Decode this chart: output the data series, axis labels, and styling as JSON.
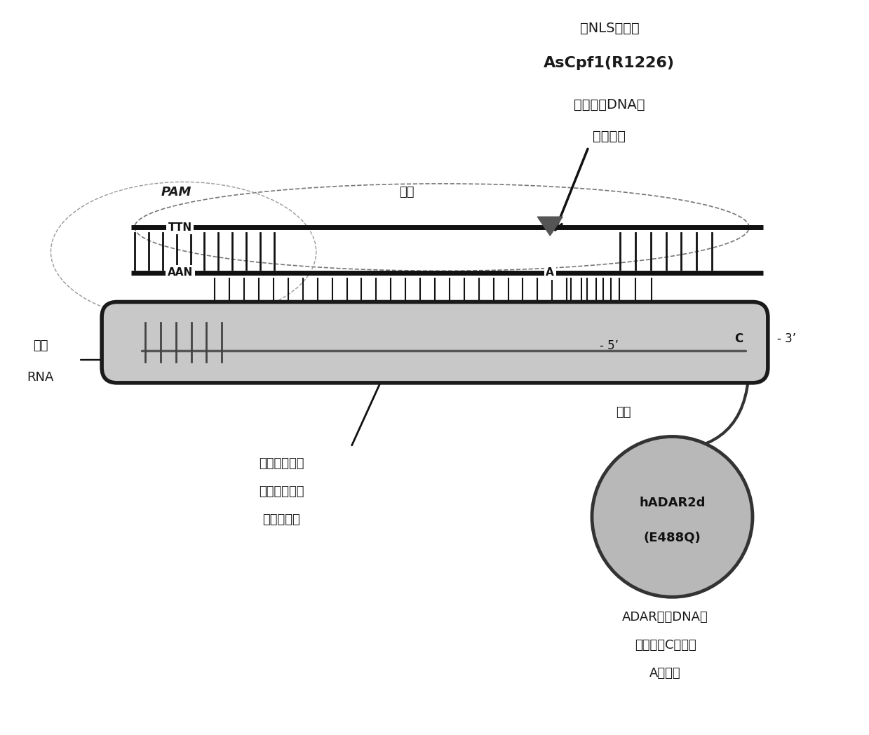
{
  "bg_color": "#ffffff",
  "line_color": "#1a1a1a",
  "dark_color": "#111111",
  "gray_color": "#888888",
  "guide_fill": "#c0c0c0",
  "adar_fill": "#b8b8b8",
  "top_annot_line1": "带NLS标签的",
  "top_annot_line2": "AsCpf1(R1226)",
  "top_annot_line3": "使非互补DNA链",
  "top_annot_line4": "产生切口",
  "label_pam": "PAM",
  "label_target": "靶标",
  "label_ttn": "TTN",
  "label_aan": "AAN",
  "label_a": "A",
  "label_c": "C",
  "label_3prime": "- 3’",
  "label_5prime": "- 5’",
  "label_guide_rna_1": "指导",
  "label_guide_rna_2": "RNA",
  "label_extend_1": "可以延长指导",
  "label_extend_2": "序列以增加异",
  "label_extend_3": "源双链体区",
  "label_linker": "接头",
  "label_adar_bottom_1": "ADAR使靶DNA中",
  "label_adar_bottom_2": "与非配对C相对的",
  "label_adar_bottom_3": "A脱氨基"
}
